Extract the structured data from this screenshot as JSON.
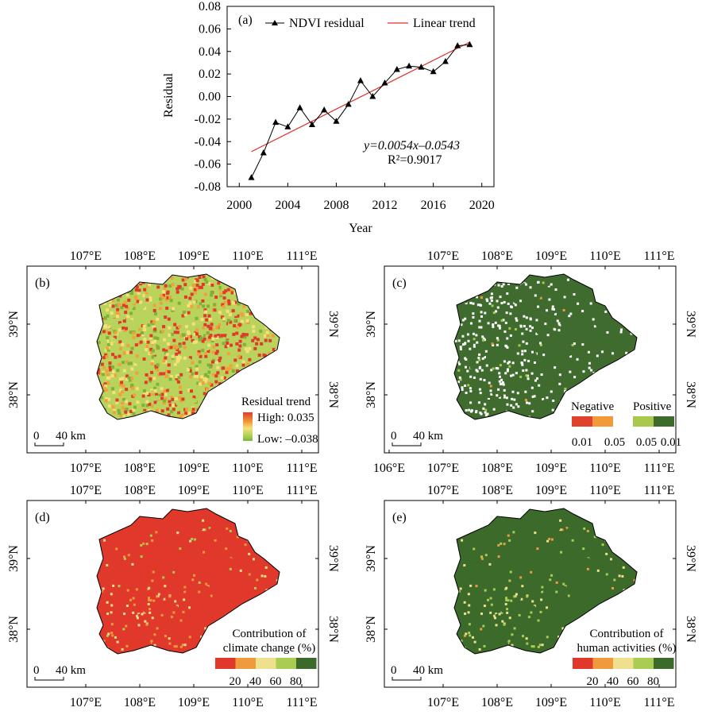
{
  "chart_data": [
    {
      "type": "line",
      "panel_label": "(a)",
      "xlabel": "Year",
      "ylabel": "Residual",
      "xlim": [
        1999,
        2021
      ],
      "ylim": [
        -0.08,
        0.08
      ],
      "xticks": [
        2000,
        2004,
        2008,
        2012,
        2016,
        2020
      ],
      "yticks": [
        -0.08,
        -0.06,
        -0.04,
        -0.02,
        0.0,
        0.02,
        0.04,
        0.06,
        0.08
      ],
      "ytick_labels": [
        "-0.08",
        "-0.06",
        "-0.04",
        "-0.02",
        "0.00",
        "0.02",
        "0.04",
        "0.06",
        "0.08"
      ],
      "legend_position": "top",
      "series": [
        {
          "name": "NDVI residual",
          "color": "#000000",
          "marker": "triangle",
          "x": [
            2001,
            2002,
            2003,
            2004,
            2005,
            2006,
            2007,
            2008,
            2009,
            2010,
            2011,
            2012,
            2013,
            2014,
            2015,
            2016,
            2017,
            2018,
            2019
          ],
          "y": [
            -0.072,
            -0.05,
            -0.023,
            -0.027,
            -0.01,
            -0.025,
            -0.012,
            -0.022,
            -0.007,
            0.014,
            0.0,
            0.012,
            0.024,
            0.027,
            0.026,
            0.022,
            0.031,
            0.045,
            0.046
          ]
        },
        {
          "name": "Linear trend",
          "color": "#e0302a",
          "x": [
            2001,
            2019
          ],
          "y": [
            -0.0489,
            0.0483
          ]
        }
      ],
      "equation": "y=0.0054x–0.0543",
      "r2": "R²=0.9017"
    },
    {
      "type": "map",
      "panel_label": "(b)",
      "legend_title": "Residual trend",
      "legend_high": "High: 0.035",
      "legend_low": "Low: –0.038",
      "colors": [
        "#e03a2c",
        "#f2a03a",
        "#f7e07a",
        "#b6d45a",
        "#7db33a"
      ]
    },
    {
      "type": "map",
      "panel_label": "(c)",
      "legend_negative": "Negative",
      "legend_positive": "Positive",
      "legend_values": [
        "0.01",
        "0.05",
        "0.05",
        "0.01"
      ],
      "colors": [
        "#e0432d",
        "#f29a3a",
        "#a8c94c",
        "#3e6a2e"
      ]
    },
    {
      "type": "map",
      "panel_label": "(d)",
      "legend_title_line1": "Contribution of",
      "legend_title_line2": "climate change (%)",
      "legend_values": [
        "20",
        "40",
        "60",
        "80"
      ],
      "colors": [
        "#e0392b",
        "#f09a3e",
        "#eee08c",
        "#a9cc52",
        "#3b6a2a"
      ]
    },
    {
      "type": "map",
      "panel_label": "(e)",
      "legend_title_line1": "Contribution of",
      "legend_title_line2": "human activities (%)",
      "legend_values": [
        "20",
        "40",
        "60",
        "80"
      ],
      "colors": [
        "#e0392b",
        "#f09a3e",
        "#eee08c",
        "#a9cc52",
        "#3b6a2a"
      ]
    }
  ],
  "map_axes": {
    "lon_top": [
      "107°E",
      "108°E",
      "109°E",
      "110°E",
      "111°E"
    ],
    "lon_bottom_b": [
      "107°E",
      "108°E",
      "109°E",
      "110°E",
      "111°E"
    ],
    "lon_bottom_c": [
      "106°E",
      "107°E",
      "108°E",
      "109°E",
      "110°E",
      "111°E"
    ],
    "lat": [
      "39°N",
      "38°N"
    ]
  },
  "scalebar": {
    "zero": "0",
    "dist": "40 km"
  }
}
